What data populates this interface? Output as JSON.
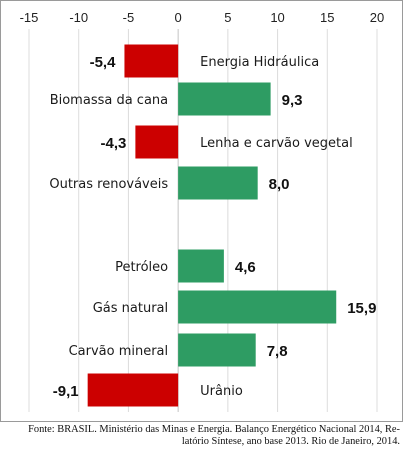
{
  "chart_data": {
    "type": "bar",
    "orientation": "horizontal",
    "xlim": [
      -15,
      20
    ],
    "xticks": [
      -15,
      -10,
      -5,
      0,
      5,
      10,
      15,
      20
    ],
    "tick_labels": [
      "-15",
      "-10",
      "-5",
      "0",
      "5",
      "10",
      "15",
      "20"
    ],
    "categories": [
      "Energia Hidráulica",
      "Biomassa da cana",
      "Lenha e carvão vegetal",
      "Outras renováveis",
      "Petróleo",
      "Gás natural",
      "Carvão mineral",
      "Urânio"
    ],
    "values": [
      -5.4,
      9.3,
      -4.3,
      8.0,
      4.6,
      15.9,
      7.8,
      -9.1
    ],
    "value_labels": [
      "-5,4",
      "9,3",
      "-4,3",
      "8,0",
      "4,6",
      "15,9",
      "7,8",
      "-9,1"
    ],
    "colors": {
      "positive": "#2e9c63",
      "negative": "#cc0000"
    },
    "grid": true,
    "legend": "none"
  },
  "source_note": {
    "line1": "Fonte: BRASIL. Ministério das Minas e Energia. Balanço Energético Nacional 2014, Re-",
    "line2": "latório Síntese, ano base 2013. Rio de Janeiro, 2014."
  }
}
